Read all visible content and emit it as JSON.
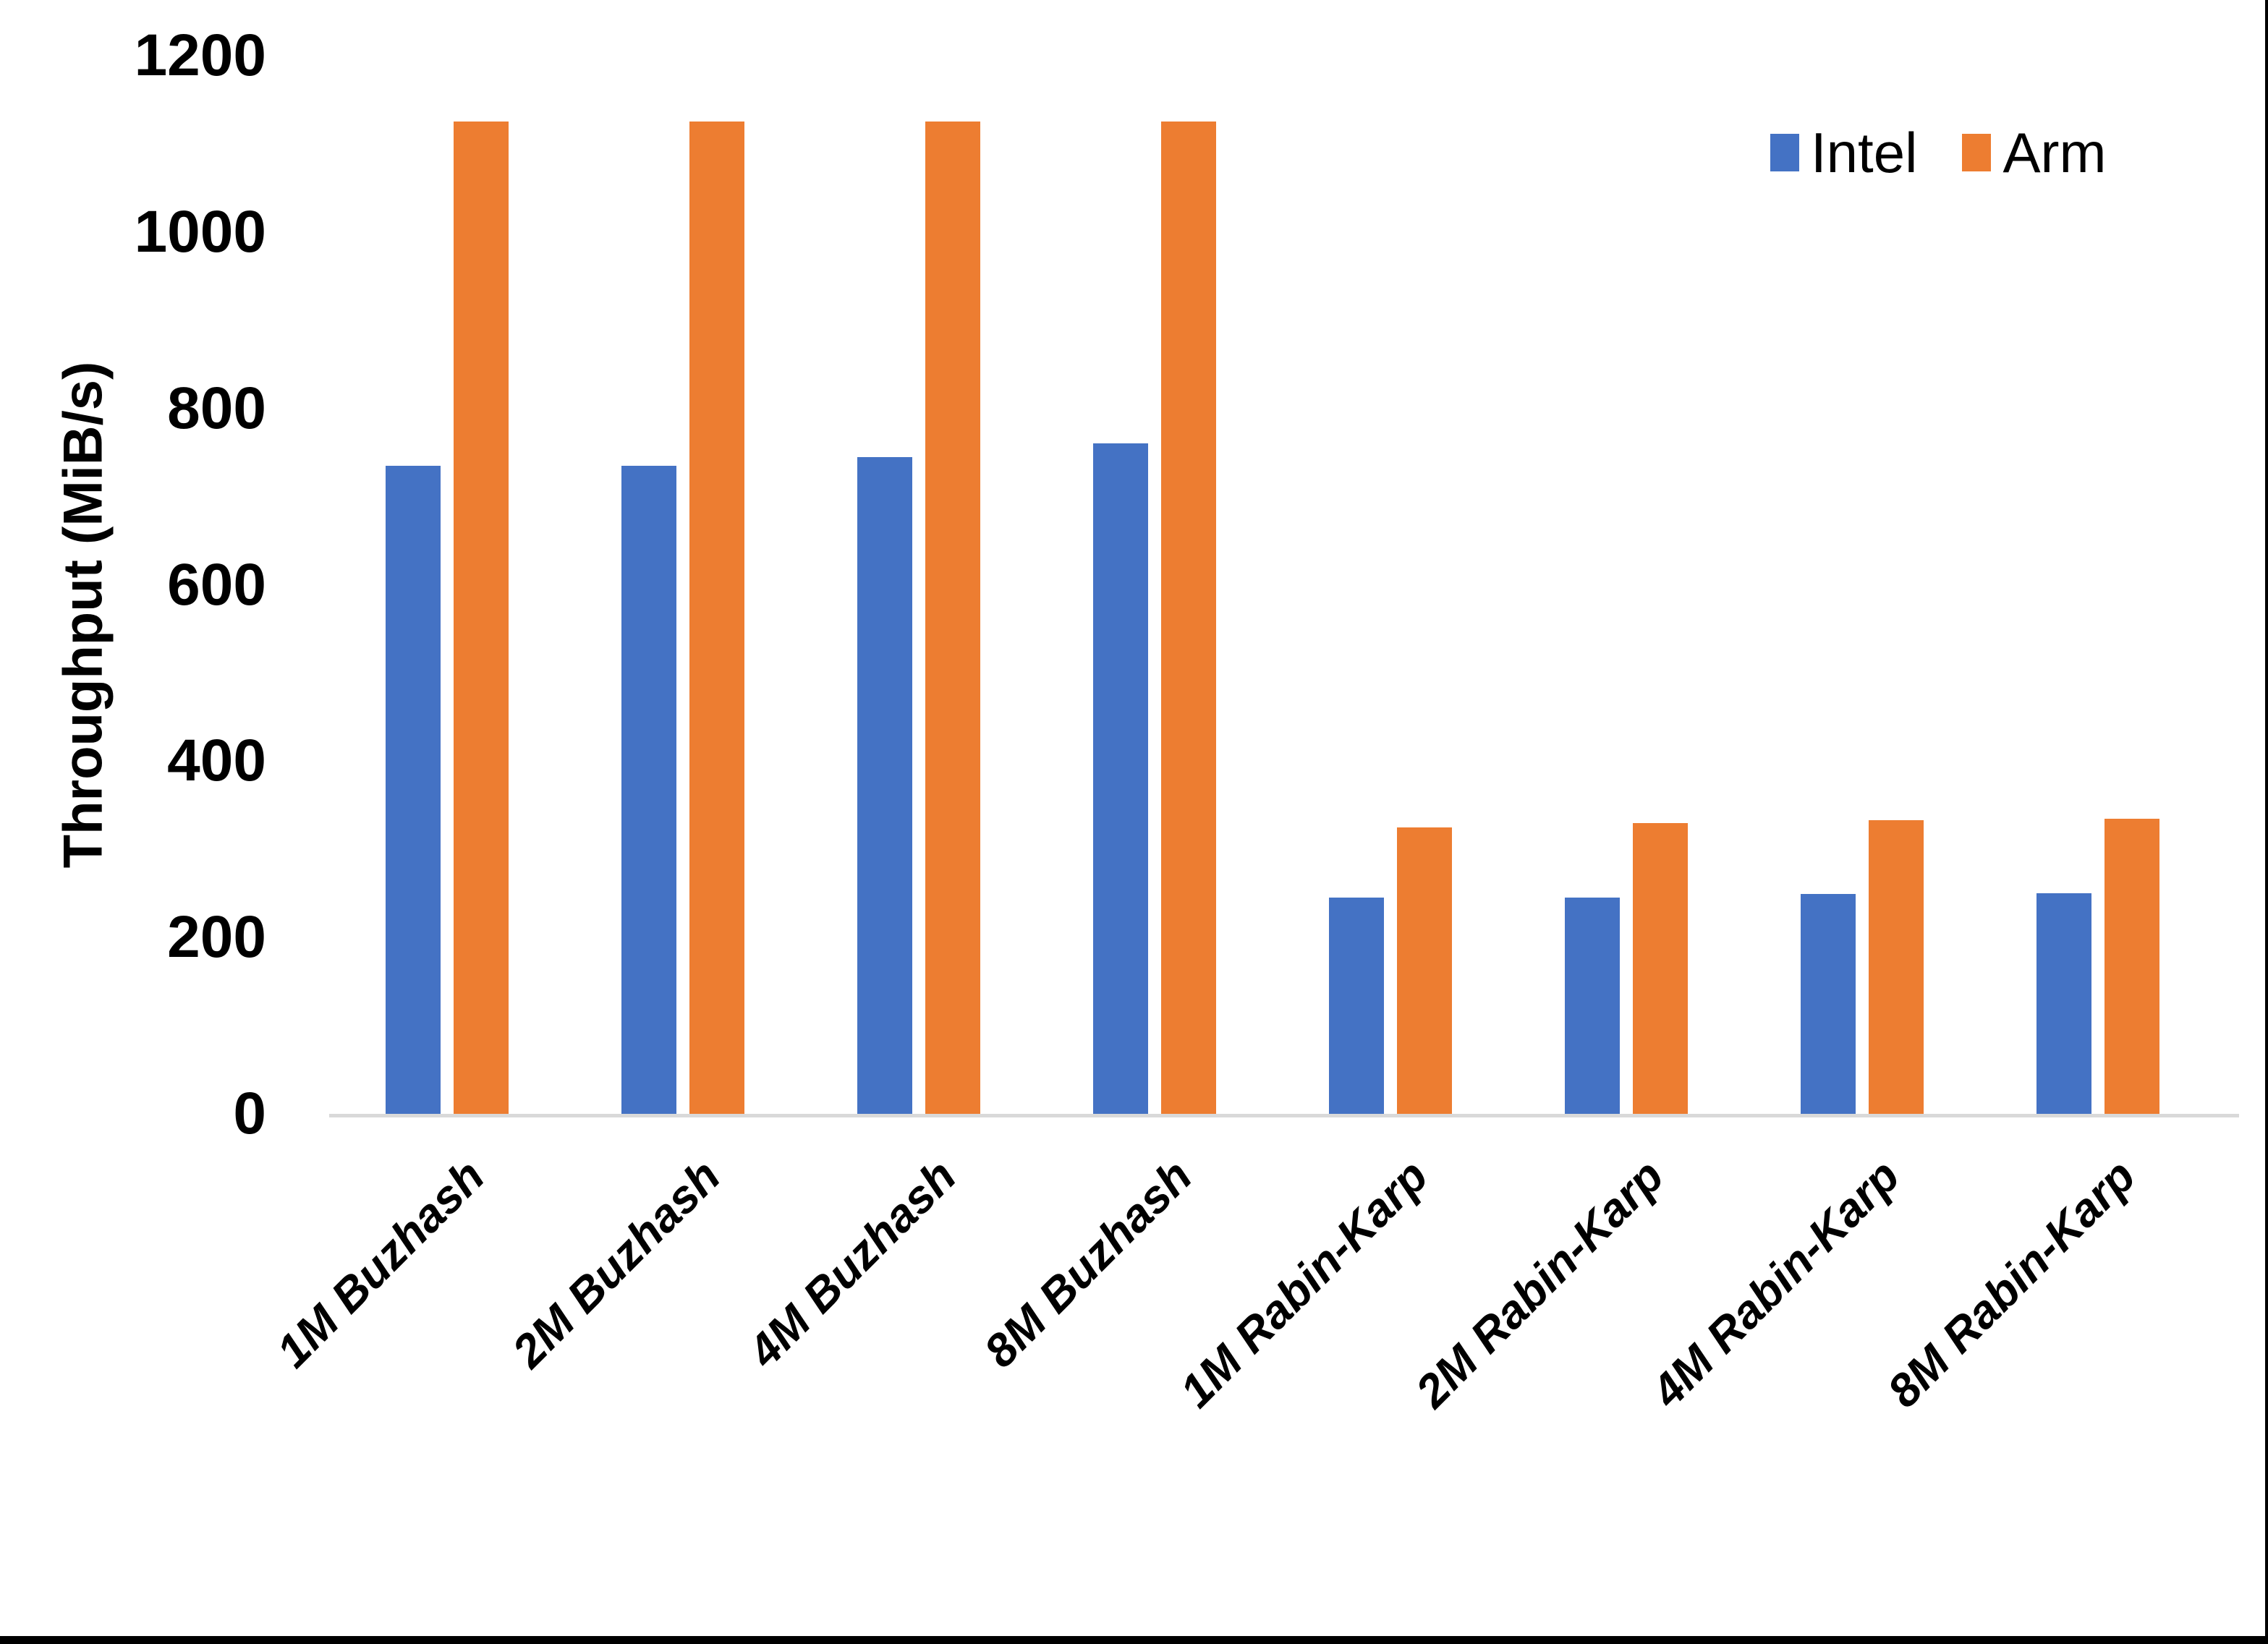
{
  "figure": {
    "background": "#ffffff",
    "frame_color": "#000000"
  },
  "legend": {
    "position": "top-right",
    "items": [
      {
        "label": "Intel",
        "color": "#4472C4"
      },
      {
        "label": "Arm",
        "color": "#ED7D31"
      }
    ]
  },
  "chart_data": {
    "type": "bar",
    "title": "",
    "xlabel": "",
    "ylabel": "Throughput (MiB/s)",
    "ylim": [
      0,
      1200
    ],
    "yticks": [
      0,
      200,
      400,
      600,
      800,
      1000,
      1200
    ],
    "grid": false,
    "axis_line_color": "#d9d9d9",
    "categories": [
      "1M Buzhash",
      "2M Buzhash",
      "4M Buzhash",
      "8M Buzhash",
      "1M Rabin-Karp",
      "2M Rabin-Karp",
      "4M Rabin-Karp",
      "8M Rabin-Karp"
    ],
    "series": [
      {
        "name": "Intel",
        "color": "#4472C4",
        "values": [
          735,
          735,
          745,
          760,
          245,
          245,
          249,
          250
        ]
      },
      {
        "name": "Arm",
        "color": "#ED7D31",
        "values": [
          1125,
          1125,
          1125,
          1125,
          325,
          330,
          333,
          335
        ]
      }
    ]
  }
}
